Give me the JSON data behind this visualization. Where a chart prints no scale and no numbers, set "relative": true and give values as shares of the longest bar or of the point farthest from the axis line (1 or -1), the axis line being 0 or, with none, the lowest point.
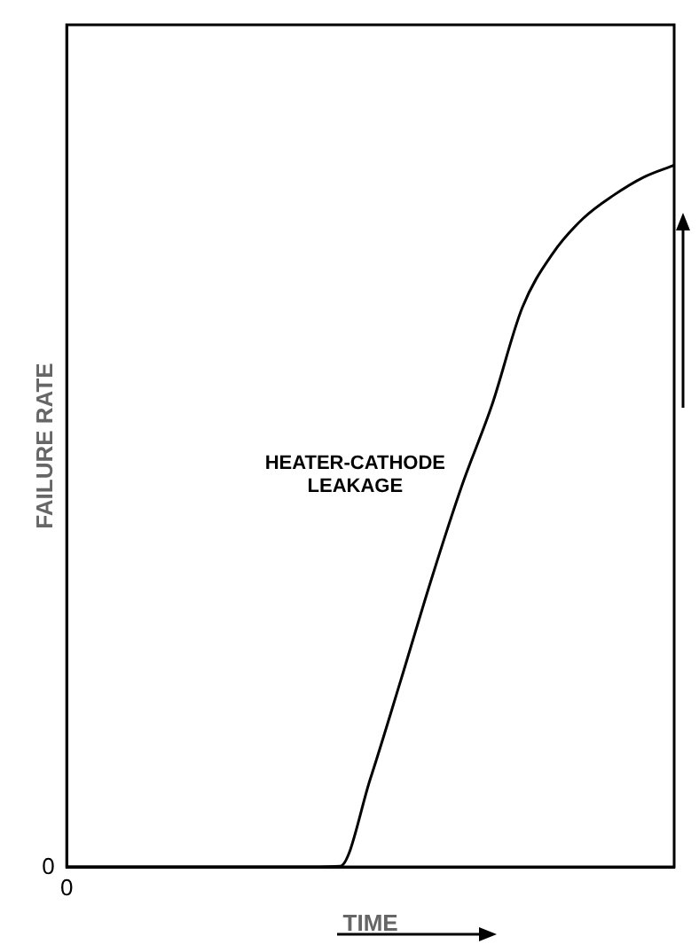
{
  "chart_data": {
    "type": "line",
    "relative": true,
    "xlabel": "TIME",
    "ylabel": "FAILURE RATE",
    "categories": [
      null,
      null,
      null,
      null,
      null,
      null,
      null,
      null,
      null,
      null,
      null,
      null,
      null,
      null,
      null,
      null,
      null,
      null,
      null,
      null,
      null
    ],
    "series": [
      {
        "name": "HEATER-CATHODE LEAKAGE",
        "color": "#000000",
        "values": [
          0,
          0,
          0,
          0,
          0,
          0,
          0,
          0,
          0,
          0.001,
          0.126,
          0.266,
          0.409,
          0.542,
          0.658,
          0.797,
          0.874,
          0.924,
          0.957,
          0.983,
          1
        ]
      }
    ],
    "annotations": [
      "0",
      "0"
    ],
    "grid": false,
    "legend": false,
    "marker": "none",
    "line_style": "solid"
  }
}
